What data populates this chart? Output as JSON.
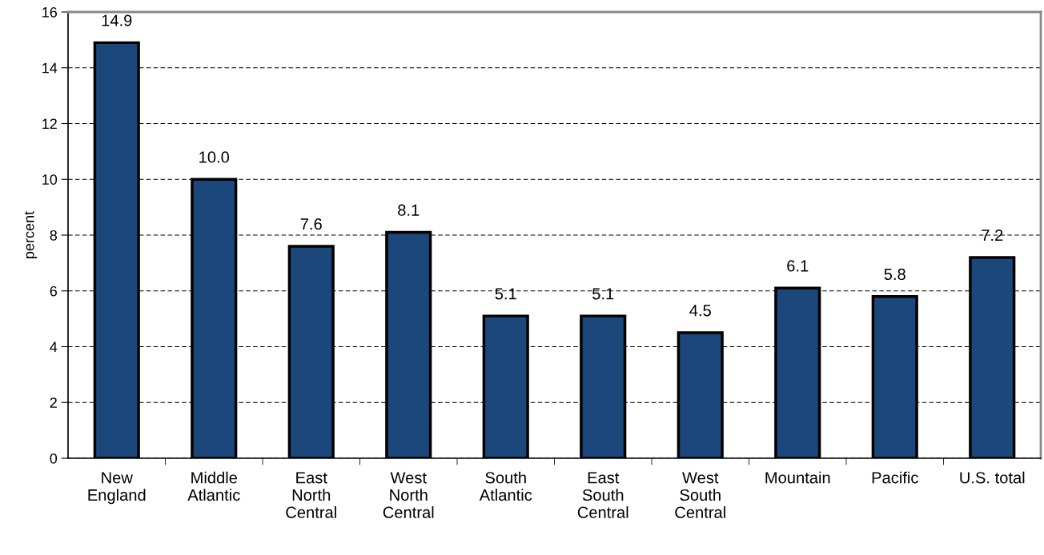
{
  "chart_data": {
    "type": "bar",
    "ylabel": "percent",
    "categories": [
      "New\nEngland",
      "Middle\nAtlantic",
      "East\nNorth\nCentral",
      "West\nNorth\nCentral",
      "South\nAtlantic",
      "East\nSouth\nCentral",
      "West\nSouth\nCentral",
      "Mountain",
      "Pacific",
      "U.S. total"
    ],
    "values": [
      14.9,
      10.0,
      7.6,
      8.1,
      5.1,
      5.1,
      4.5,
      6.1,
      5.8,
      7.2
    ],
    "value_labels": [
      "14.9",
      "10.0",
      "7.6",
      "8.1",
      "5.1",
      "5.1",
      "4.5",
      "6.1",
      "5.8",
      "7.2"
    ],
    "color": "#1b477b",
    "ylim": [
      0,
      16
    ],
    "yticks": [
      0,
      2,
      4,
      6,
      8,
      10,
      12,
      14,
      16
    ],
    "grid": "y",
    "legend": false
  }
}
